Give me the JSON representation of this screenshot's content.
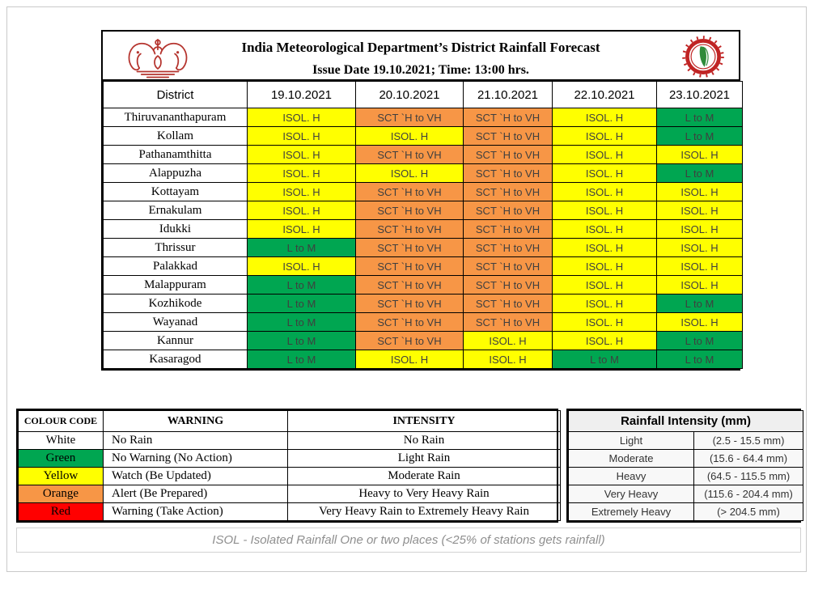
{
  "header": {
    "title": "India Meteorological Department’s District Rainfall Forecast",
    "subtitle": "Issue Date 19.10.2021; Time: 13:00 hrs.",
    "left_logo": "kerala-government-emblem",
    "right_logo": "imd-logo"
  },
  "colors": {
    "yellow": "#FFFF00",
    "orange": "#F79646",
    "green": "#00A651",
    "red": "#FF0000",
    "white": "#FFFFFF"
  },
  "forecast_table": {
    "columns": [
      "District",
      "19.10.2021",
      "20.10.2021",
      "21.10.2021",
      "22.10.2021",
      "23.10.2021"
    ],
    "rows": [
      {
        "district": "Thiruvananthapuram",
        "cells": [
          {
            "text": "ISOL. H",
            "color": "yellow"
          },
          {
            "text": "SCT `H to VH",
            "color": "orange"
          },
          {
            "text": "SCT `H to VH",
            "color": "orange"
          },
          {
            "text": "ISOL. H",
            "color": "yellow"
          },
          {
            "text": "L to M",
            "color": "green"
          }
        ]
      },
      {
        "district": "Kollam",
        "cells": [
          {
            "text": "ISOL. H",
            "color": "yellow"
          },
          {
            "text": "ISOL. H",
            "color": "yellow"
          },
          {
            "text": "SCT `H to VH",
            "color": "orange"
          },
          {
            "text": "ISOL. H",
            "color": "yellow"
          },
          {
            "text": "L to M",
            "color": "green"
          }
        ]
      },
      {
        "district": "Pathanamthitta",
        "cells": [
          {
            "text": "ISOL. H",
            "color": "yellow"
          },
          {
            "text": "SCT `H to VH",
            "color": "orange"
          },
          {
            "text": "SCT `H to VH",
            "color": "orange"
          },
          {
            "text": "ISOL. H",
            "color": "yellow"
          },
          {
            "text": "ISOL. H",
            "color": "yellow"
          }
        ]
      },
      {
        "district": "Alappuzha",
        "cells": [
          {
            "text": "ISOL. H",
            "color": "yellow"
          },
          {
            "text": "ISOL. H",
            "color": "yellow"
          },
          {
            "text": "SCT `H to VH",
            "color": "orange"
          },
          {
            "text": "ISOL. H",
            "color": "yellow"
          },
          {
            "text": "L to M",
            "color": "green"
          }
        ]
      },
      {
        "district": "Kottayam",
        "cells": [
          {
            "text": "ISOL. H",
            "color": "yellow"
          },
          {
            "text": "SCT `H to VH",
            "color": "orange"
          },
          {
            "text": "SCT `H to VH",
            "color": "orange"
          },
          {
            "text": "ISOL. H",
            "color": "yellow"
          },
          {
            "text": "ISOL. H",
            "color": "yellow"
          }
        ]
      },
      {
        "district": "Ernakulam",
        "cells": [
          {
            "text": "ISOL. H",
            "color": "yellow"
          },
          {
            "text": "SCT `H to VH",
            "color": "orange"
          },
          {
            "text": "SCT `H to VH",
            "color": "orange"
          },
          {
            "text": "ISOL. H",
            "color": "yellow"
          },
          {
            "text": "ISOL. H",
            "color": "yellow"
          }
        ]
      },
      {
        "district": "Idukki",
        "cells": [
          {
            "text": "ISOL. H",
            "color": "yellow"
          },
          {
            "text": "SCT `H to VH",
            "color": "orange"
          },
          {
            "text": "SCT `H to VH",
            "color": "orange"
          },
          {
            "text": "ISOL. H",
            "color": "yellow"
          },
          {
            "text": "ISOL. H",
            "color": "yellow"
          }
        ]
      },
      {
        "district": "Thrissur",
        "cells": [
          {
            "text": "L to M",
            "color": "green"
          },
          {
            "text": "SCT `H to VH",
            "color": "orange"
          },
          {
            "text": "SCT `H to VH",
            "color": "orange"
          },
          {
            "text": "ISOL. H",
            "color": "yellow"
          },
          {
            "text": "ISOL. H",
            "color": "yellow"
          }
        ]
      },
      {
        "district": "Palakkad",
        "cells": [
          {
            "text": "ISOL. H",
            "color": "yellow"
          },
          {
            "text": "SCT `H to VH",
            "color": "orange"
          },
          {
            "text": "SCT `H to VH",
            "color": "orange"
          },
          {
            "text": "ISOL. H",
            "color": "yellow"
          },
          {
            "text": "ISOL. H",
            "color": "yellow"
          }
        ]
      },
      {
        "district": "Malappuram",
        "cells": [
          {
            "text": "L to M",
            "color": "green"
          },
          {
            "text": "SCT `H to VH",
            "color": "orange"
          },
          {
            "text": "SCT `H to VH",
            "color": "orange"
          },
          {
            "text": "ISOL. H",
            "color": "yellow"
          },
          {
            "text": "ISOL. H",
            "color": "yellow"
          }
        ]
      },
      {
        "district": "Kozhikode",
        "cells": [
          {
            "text": "L to M",
            "color": "green"
          },
          {
            "text": "SCT `H to VH",
            "color": "orange"
          },
          {
            "text": "SCT `H to VH",
            "color": "orange"
          },
          {
            "text": "ISOL. H",
            "color": "yellow"
          },
          {
            "text": "L to M",
            "color": "green"
          }
        ]
      },
      {
        "district": "Wayanad",
        "cells": [
          {
            "text": "L to M",
            "color": "green"
          },
          {
            "text": "SCT `H to VH",
            "color": "orange"
          },
          {
            "text": "SCT `H to VH",
            "color": "orange"
          },
          {
            "text": "ISOL. H",
            "color": "yellow"
          },
          {
            "text": "ISOL. H",
            "color": "yellow"
          }
        ]
      },
      {
        "district": "Kannur",
        "cells": [
          {
            "text": "L to M",
            "color": "green"
          },
          {
            "text": "SCT `H to VH",
            "color": "orange"
          },
          {
            "text": "ISOL. H",
            "color": "yellow"
          },
          {
            "text": "ISOL. H",
            "color": "yellow"
          },
          {
            "text": "L to M",
            "color": "green"
          }
        ]
      },
      {
        "district": "Kasaragod",
        "cells": [
          {
            "text": "L to M",
            "color": "green"
          },
          {
            "text": "ISOL. H",
            "color": "yellow"
          },
          {
            "text": "ISOL. H",
            "color": "yellow"
          },
          {
            "text": "L to M",
            "color": "green"
          },
          {
            "text": "L to M",
            "color": "green"
          }
        ]
      }
    ]
  },
  "colour_code_table": {
    "headers": [
      "COLOUR CODE",
      "WARNING",
      "INTENSITY"
    ],
    "rows": [
      {
        "code": "White",
        "color": "#FFFFFF",
        "warning": "No Rain",
        "intensity": "No Rain"
      },
      {
        "code": "Green",
        "color": "#00A651",
        "warning": "No Warning (No Action)",
        "intensity": "Light Rain"
      },
      {
        "code": "Yellow",
        "color": "#FFFF00",
        "warning": "Watch (Be Updated)",
        "intensity": "Moderate Rain"
      },
      {
        "code": "Orange",
        "color": "#F79646",
        "warning": "Alert (Be Prepared)",
        "intensity": "Heavy to Very Heavy Rain"
      },
      {
        "code": "Red",
        "color": "#FF0000",
        "warning": "Warning (Take Action)",
        "intensity": "Very Heavy Rain to Extremely Heavy Rain"
      }
    ]
  },
  "rainfall_intensity_table": {
    "title": "Rainfall Intensity (mm)",
    "rows": [
      {
        "label": "Light",
        "range": "(2.5 - 15.5 mm)"
      },
      {
        "label": "Moderate",
        "range": "(15.6 - 64.4 mm)"
      },
      {
        "label": "Heavy",
        "range": "(64.5 - 115.5 mm)"
      },
      {
        "label": "Very Heavy",
        "range": "(115.6 - 204.4 mm)"
      },
      {
        "label": "Extremely Heavy",
        "range": "(> 204.5 mm)"
      }
    ]
  },
  "footnote": "ISOL - Isolated Rainfall One or two places (<25% of stations gets rainfall)"
}
